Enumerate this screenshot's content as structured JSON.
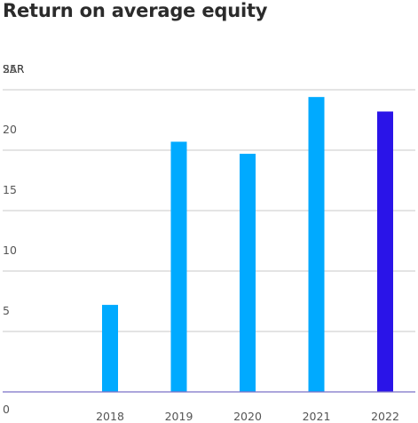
{
  "chart_data": {
    "type": "bar",
    "title": "Return on average equity",
    "ylabel": "SAR",
    "xlabel": "",
    "categories": [
      "2018",
      "2019",
      "2020",
      "2021",
      "2022"
    ],
    "values": [
      7.2,
      20.7,
      19.7,
      24.4,
      23.2
    ],
    "ylim": [
      0,
      25
    ],
    "yticks": [
      0,
      5,
      10,
      15,
      20,
      25
    ],
    "grid": true,
    "colors": {
      "bar": "#00aaff",
      "highlight": "#2a14e8"
    },
    "highlight_category": "2022"
  }
}
